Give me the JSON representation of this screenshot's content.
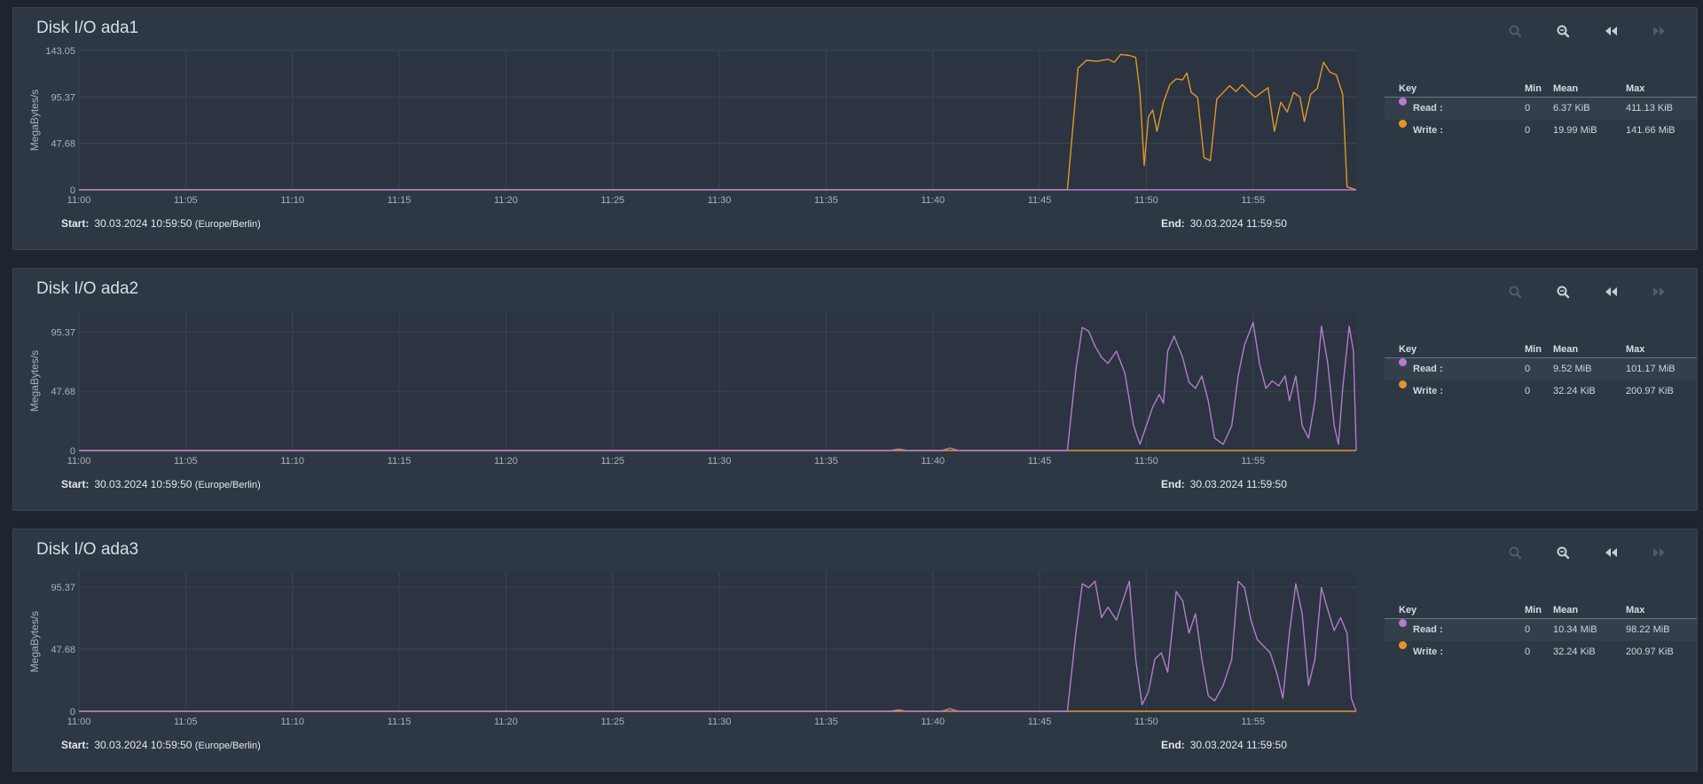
{
  "colors": {
    "read": "#b47ccd",
    "write": "#e4952a"
  },
  "toolbar_icons": [
    "zoom-in-icon",
    "zoom-out-icon",
    "rewind-icon",
    "fast-forward-icon"
  ],
  "legend_headers": {
    "key": "Key",
    "min": "Min",
    "mean": "Mean",
    "max": "Max"
  },
  "range": {
    "start_label": "Start:",
    "start_value": "30.03.2024 10:59:50",
    "start_tz": "(Europe/Berlin)",
    "end_label": "End:",
    "end_value": "30.03.2024 11:59:50"
  },
  "panels": [
    {
      "title": "Disk I/O ada1",
      "legend": [
        {
          "name": "Read :",
          "min": "0",
          "mean": "6.37 KiB",
          "max": "411.13 KiB"
        },
        {
          "name": "Write :",
          "min": "0",
          "mean": "19.99 MiB",
          "max": "141.66 MiB"
        }
      ]
    },
    {
      "title": "Disk I/O ada2",
      "legend": [
        {
          "name": "Read :",
          "min": "0",
          "mean": "9.52 MiB",
          "max": "101.17 MiB"
        },
        {
          "name": "Write :",
          "min": "0",
          "mean": "32.24 KiB",
          "max": "200.97 KiB"
        }
      ]
    },
    {
      "title": "Disk I/O ada3",
      "legend": [
        {
          "name": "Read :",
          "min": "0",
          "mean": "10.34 MiB",
          "max": "98.22 MiB"
        },
        {
          "name": "Write :",
          "min": "0",
          "mean": "32.24 KiB",
          "max": "200.97 KiB"
        }
      ]
    }
  ],
  "chart_data": [
    {
      "type": "line",
      "ylabel": "MegaBytes/s",
      "x_ticks": [
        "11:00",
        "11:05",
        "11:10",
        "11:15",
        "11:20",
        "11:25",
        "11:30",
        "11:35",
        "11:40",
        "11:45",
        "11:50",
        "11:55"
      ],
      "y_ticks": [
        "143.05",
        "95.37",
        "47.68",
        "0"
      ],
      "ylim": [
        0,
        143.05
      ],
      "x_unit": "minutes after 11:00",
      "xlim": [
        0,
        59.83
      ],
      "series": [
        {
          "name": "Write",
          "color": "#e4952a",
          "points": [
            [
              0,
              0
            ],
            [
              46.3,
              0
            ],
            [
              46.8,
              125
            ],
            [
              47.2,
              133
            ],
            [
              47.7,
              132
            ],
            [
              48.2,
              134
            ],
            [
              48.5,
              131
            ],
            [
              48.8,
              139
            ],
            [
              49.2,
              138
            ],
            [
              49.5,
              136
            ],
            [
              49.7,
              100
            ],
            [
              49.9,
              25
            ],
            [
              50.1,
              75
            ],
            [
              50.3,
              82
            ],
            [
              50.5,
              60
            ],
            [
              50.8,
              90
            ],
            [
              51.1,
              108
            ],
            [
              51.4,
              114
            ],
            [
              51.7,
              113
            ],
            [
              51.9,
              120
            ],
            [
              52.1,
              100
            ],
            [
              52.4,
              95
            ],
            [
              52.7,
              33
            ],
            [
              53.0,
              30
            ],
            [
              53.3,
              93
            ],
            [
              53.6,
              100
            ],
            [
              53.9,
              107
            ],
            [
              54.2,
              101
            ],
            [
              54.5,
              108
            ],
            [
              54.8,
              101
            ],
            [
              55.1,
              95
            ],
            [
              55.4,
              100
            ],
            [
              55.7,
              105
            ],
            [
              56.0,
              60
            ],
            [
              56.3,
              90
            ],
            [
              56.6,
              80
            ],
            [
              56.9,
              100
            ],
            [
              57.2,
              95
            ],
            [
              57.4,
              70
            ],
            [
              57.7,
              98
            ],
            [
              58.0,
              104
            ],
            [
              58.3,
              131
            ],
            [
              58.6,
              121
            ],
            [
              58.9,
              118
            ],
            [
              59.2,
              98
            ],
            [
              59.4,
              3
            ],
            [
              59.83,
              0
            ]
          ]
        },
        {
          "name": "Read",
          "color": "#b47ccd",
          "points": [
            [
              0,
              0
            ],
            [
              59.83,
              0
            ]
          ]
        }
      ]
    },
    {
      "type": "line",
      "ylabel": "MegaBytes/s",
      "x_ticks": [
        "11:00",
        "11:05",
        "11:10",
        "11:15",
        "11:20",
        "11:25",
        "11:30",
        "11:35",
        "11:40",
        "11:45",
        "11:50",
        "11:55"
      ],
      "y_ticks": [
        "95.37",
        "47.68",
        "0"
      ],
      "ylim": [
        0,
        112
      ],
      "x_unit": "minutes after 11:00",
      "xlim": [
        0,
        59.83
      ],
      "series": [
        {
          "name": "Write",
          "color": "#e4952a",
          "points": [
            [
              0,
              0
            ],
            [
              59.83,
              0
            ]
          ]
        },
        {
          "name": "Read",
          "color": "#b47ccd",
          "points": [
            [
              0,
              0
            ],
            [
              38.0,
              0
            ],
            [
              38.4,
              1.2
            ],
            [
              38.8,
              0
            ],
            [
              40.4,
              0
            ],
            [
              40.8,
              2
            ],
            [
              41.2,
              0
            ],
            [
              46.3,
              0
            ],
            [
              46.7,
              65
            ],
            [
              47.0,
              99
            ],
            [
              47.3,
              96
            ],
            [
              47.6,
              84
            ],
            [
              47.9,
              75
            ],
            [
              48.2,
              70
            ],
            [
              48.6,
              80
            ],
            [
              49.0,
              62
            ],
            [
              49.4,
              20
            ],
            [
              49.7,
              5
            ],
            [
              50.0,
              20
            ],
            [
              50.3,
              35
            ],
            [
              50.6,
              45
            ],
            [
              50.8,
              38
            ],
            [
              51.0,
              80
            ],
            [
              51.3,
              92
            ],
            [
              51.7,
              75
            ],
            [
              52.0,
              55
            ],
            [
              52.3,
              50
            ],
            [
              52.6,
              60
            ],
            [
              52.9,
              40
            ],
            [
              53.2,
              10
            ],
            [
              53.6,
              5
            ],
            [
              54.0,
              20
            ],
            [
              54.3,
              60
            ],
            [
              54.6,
              85
            ],
            [
              55.0,
              103
            ],
            [
              55.3,
              70
            ],
            [
              55.6,
              50
            ],
            [
              55.9,
              56
            ],
            [
              56.2,
              52
            ],
            [
              56.5,
              60
            ],
            [
              56.7,
              40
            ],
            [
              57.0,
              60
            ],
            [
              57.3,
              20
            ],
            [
              57.6,
              10
            ],
            [
              57.9,
              40
            ],
            [
              58.2,
              100
            ],
            [
              58.5,
              70
            ],
            [
              58.8,
              20
            ],
            [
              59.0,
              5
            ],
            [
              59.2,
              50
            ],
            [
              59.5,
              100
            ],
            [
              59.7,
              80
            ],
            [
              59.83,
              0
            ]
          ]
        }
      ]
    },
    {
      "type": "line",
      "ylabel": "MegaBytes/s",
      "x_ticks": [
        "11:00",
        "11:05",
        "11:10",
        "11:15",
        "11:20",
        "11:25",
        "11:30",
        "11:35",
        "11:40",
        "11:45",
        "11:50",
        "11:55"
      ],
      "y_ticks": [
        "95.37",
        "47.68",
        "0"
      ],
      "ylim": [
        0,
        107
      ],
      "x_unit": "minutes after 11:00",
      "xlim": [
        0,
        59.83
      ],
      "series": [
        {
          "name": "Write",
          "color": "#e4952a",
          "points": [
            [
              0,
              0
            ],
            [
              59.83,
              0
            ]
          ]
        },
        {
          "name": "Read",
          "color": "#b47ccd",
          "points": [
            [
              0,
              0
            ],
            [
              38.0,
              0
            ],
            [
              38.4,
              1
            ],
            [
              38.8,
              0
            ],
            [
              40.4,
              0
            ],
            [
              40.8,
              2
            ],
            [
              41.2,
              0
            ],
            [
              46.3,
              0
            ],
            [
              46.7,
              60
            ],
            [
              47.0,
              98
            ],
            [
              47.3,
              95
            ],
            [
              47.6,
              100
            ],
            [
              47.9,
              72
            ],
            [
              48.2,
              80
            ],
            [
              48.6,
              70
            ],
            [
              48.9,
              85
            ],
            [
              49.2,
              100
            ],
            [
              49.5,
              40
            ],
            [
              49.8,
              5
            ],
            [
              50.1,
              15
            ],
            [
              50.4,
              40
            ],
            [
              50.7,
              45
            ],
            [
              51.0,
              30
            ],
            [
              51.4,
              92
            ],
            [
              51.7,
              85
            ],
            [
              52.0,
              60
            ],
            [
              52.3,
              75
            ],
            [
              52.6,
              40
            ],
            [
              52.9,
              12
            ],
            [
              53.2,
              8
            ],
            [
              53.6,
              20
            ],
            [
              54.0,
              40
            ],
            [
              54.3,
              100
            ],
            [
              54.6,
              95
            ],
            [
              54.9,
              70
            ],
            [
              55.2,
              55
            ],
            [
              55.5,
              50
            ],
            [
              55.8,
              45
            ],
            [
              56.1,
              30
            ],
            [
              56.4,
              10
            ],
            [
              56.7,
              60
            ],
            [
              57.0,
              98
            ],
            [
              57.3,
              75
            ],
            [
              57.6,
              20
            ],
            [
              57.9,
              40
            ],
            [
              58.2,
              95
            ],
            [
              58.5,
              78
            ],
            [
              58.8,
              62
            ],
            [
              59.1,
              72
            ],
            [
              59.4,
              60
            ],
            [
              59.6,
              10
            ],
            [
              59.83,
              0
            ]
          ]
        }
      ]
    }
  ]
}
